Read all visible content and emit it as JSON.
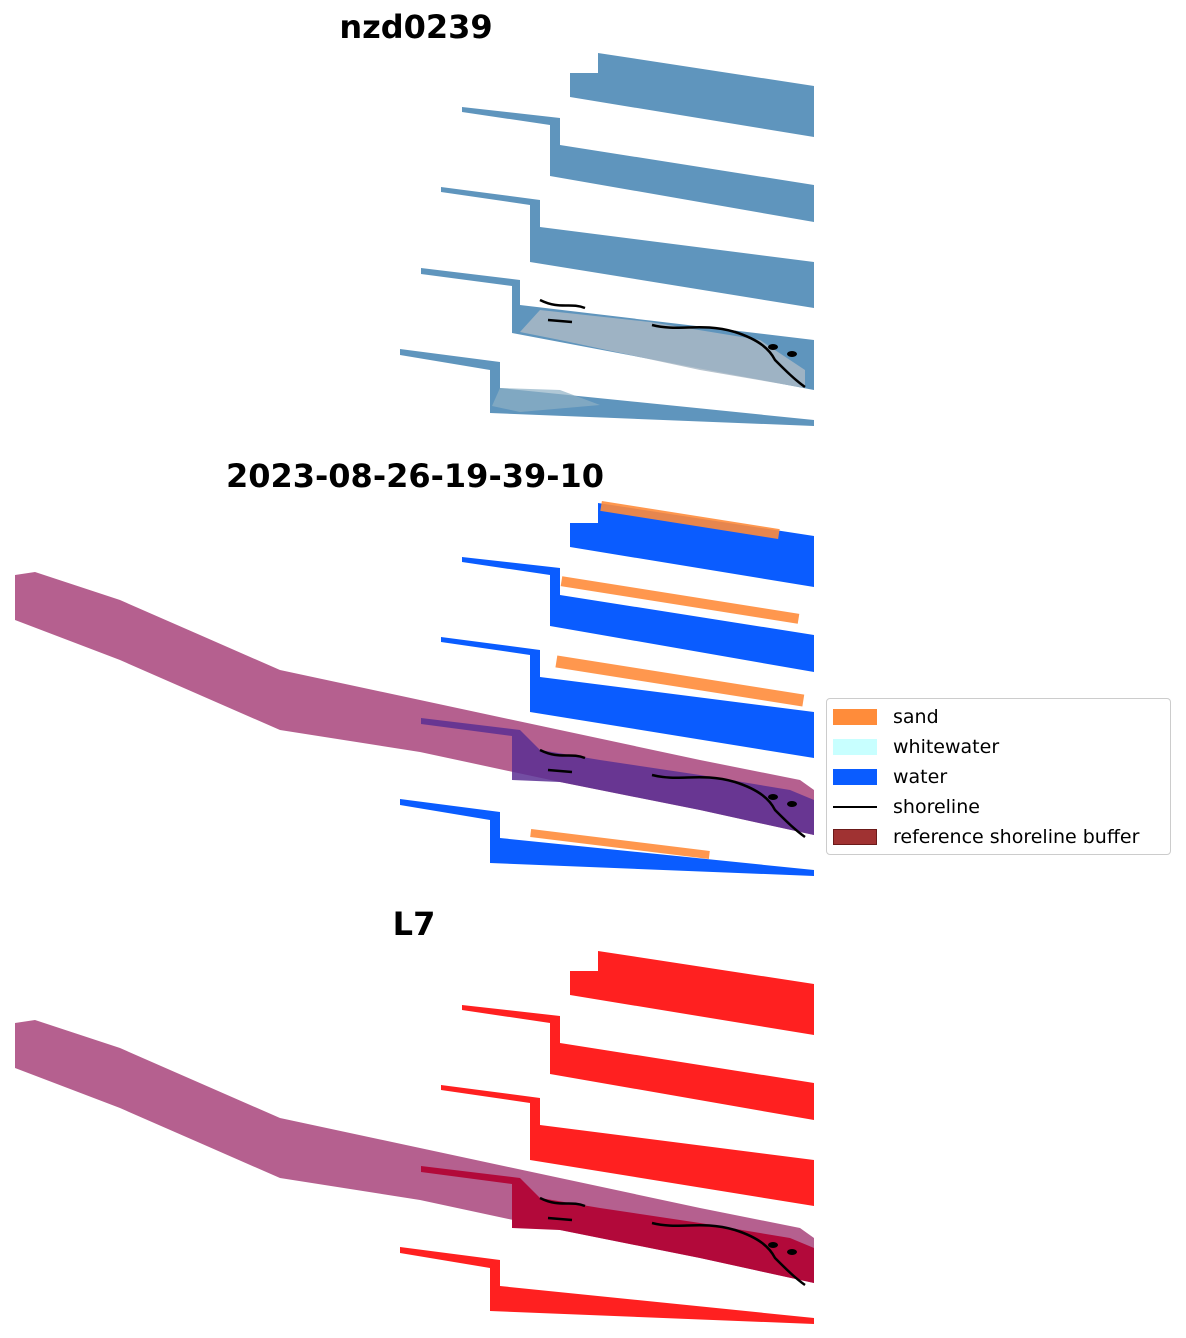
{
  "panels": [
    {
      "id": "rgb",
      "title": "nzd0239"
    },
    {
      "id": "classification",
      "title": "2023-08-26-19-39-10"
    },
    {
      "id": "mndwi",
      "title": "L7"
    }
  ],
  "legend": {
    "items": [
      {
        "label": "sand",
        "color": "#ff8c3a",
        "kind": "patch"
      },
      {
        "label": "whitewater",
        "color": "#c8ffff",
        "kind": "patch"
      },
      {
        "label": "water",
        "color": "#0a5cff",
        "kind": "patch"
      },
      {
        "label": "shoreline",
        "color": "#000000",
        "kind": "line"
      },
      {
        "label": "reference shoreline buffer",
        "color": "#a03232",
        "kind": "patch"
      }
    ]
  },
  "colors": {
    "rgb_water": "#5f95bd",
    "rgb_beach": "#a9b8c6",
    "water_class": "#0a5cff",
    "sand_class": "#ff8c3a",
    "buffer": "#b5608f",
    "mndwi": "#ff2020",
    "mndwi_overlap": "#b2093a",
    "shoreline": "#000000"
  }
}
